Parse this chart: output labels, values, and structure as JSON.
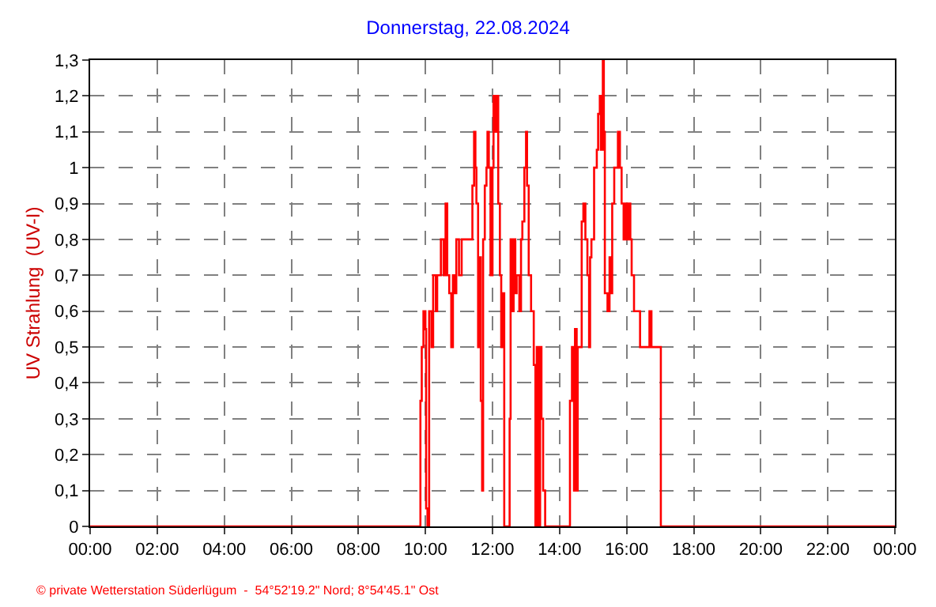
{
  "chart_data": {
    "type": "step",
    "title": "Donnerstag, 22.08.2024",
    "ylabel": "UV Strahlung  (UV-I)",
    "annotations": [
      "© private Wetterstation Süderlügum  -  54°52'19.2\" Nord; 8°54'45.1\" Ost"
    ],
    "xlim": [
      0,
      24
    ],
    "ylim": [
      0,
      1.3
    ],
    "xticks": [
      {
        "value": 0,
        "label": "00:00"
      },
      {
        "value": 2,
        "label": "02:00"
      },
      {
        "value": 4,
        "label": "04:00"
      },
      {
        "value": 6,
        "label": "06:00"
      },
      {
        "value": 8,
        "label": "08:00"
      },
      {
        "value": 10,
        "label": "10:00"
      },
      {
        "value": 12,
        "label": "12:00"
      },
      {
        "value": 14,
        "label": "14:00"
      },
      {
        "value": 16,
        "label": "16:00"
      },
      {
        "value": 18,
        "label": "18:00"
      },
      {
        "value": 20,
        "label": "20:00"
      },
      {
        "value": 22,
        "label": "22:00"
      },
      {
        "value": 24,
        "label": "00:00"
      }
    ],
    "yticks": [
      0,
      {
        "value": 0.1,
        "label": "0,1"
      },
      {
        "value": 0.2,
        "label": "0,2"
      },
      {
        "value": 0.3,
        "label": "0,3"
      },
      {
        "value": 0.4,
        "label": "0,4"
      },
      {
        "value": 0.5,
        "label": "0,5"
      },
      {
        "value": 0.6,
        "label": "0,6"
      },
      {
        "value": 0.7,
        "label": "0,7"
      },
      {
        "value": 0.8,
        "label": "0,8"
      },
      {
        "value": 0.9,
        "label": "0,9"
      },
      1,
      {
        "value": 1.1,
        "label": "1,1"
      },
      {
        "value": 1.2,
        "label": "1,2"
      },
      {
        "value": 1.3,
        "label": "1,3"
      }
    ],
    "grid": true,
    "line_style": "solid",
    "series": [
      {
        "color": "#ff0000",
        "x": [
          0,
          9.85,
          9.89,
          9.94,
          10.0,
          10.02,
          10.06,
          10.11,
          10.18,
          10.23,
          10.31,
          10.35,
          10.46,
          10.54,
          10.6,
          10.65,
          10.71,
          10.77,
          10.82,
          10.88,
          10.92,
          11.0,
          11.08,
          11.35,
          11.4,
          11.45,
          11.49,
          11.52,
          11.57,
          11.6,
          11.65,
          11.69,
          11.72,
          11.77,
          11.82,
          11.85,
          11.89,
          11.94,
          12.0,
          12.03,
          12.08,
          12.12,
          12.17,
          12.22,
          12.26,
          12.31,
          12.35,
          12.51,
          12.54,
          12.58,
          12.63,
          12.68,
          12.72,
          12.8,
          12.85,
          12.89,
          12.95,
          13.0,
          13.03,
          13.08,
          13.15,
          13.23,
          13.28,
          13.32,
          13.37,
          13.42,
          13.46,
          13.51,
          13.57,
          14.31,
          14.37,
          14.43,
          14.46,
          14.51,
          14.54,
          14.66,
          14.71,
          14.77,
          14.83,
          14.88,
          14.91,
          14.95,
          15.03,
          15.11,
          15.15,
          15.2,
          15.23,
          15.29,
          15.32,
          15.35,
          15.43,
          15.49,
          15.54,
          15.57,
          15.63,
          15.74,
          15.8,
          15.85,
          15.91,
          15.95,
          16.0,
          16.05,
          16.11,
          16.15,
          16.22,
          16.4,
          16.65,
          16.68,
          16.74,
          17.02,
          24
        ],
        "values": [
          0,
          0.35,
          0.5,
          0.6,
          0.55,
          0.05,
          0,
          0.6,
          0.5,
          0.7,
          0.6,
          0.7,
          0.8,
          0.7,
          0.9,
          0.7,
          0.65,
          0.5,
          0.7,
          0.65,
          0.8,
          0.7,
          0.8,
          0.8,
          0.95,
          1.1,
          1.0,
          0.9,
          0.5,
          0.75,
          0.35,
          0.1,
          0.8,
          0.95,
          1.0,
          1.1,
          1.0,
          0.7,
          1.0,
          1.2,
          1.1,
          1.2,
          0.9,
          0.7,
          0.5,
          0.65,
          0,
          0.3,
          0.8,
          0.6,
          0.8,
          0.65,
          0.7,
          0.6,
          0.8,
          0.85,
          1.0,
          1.1,
          0.95,
          0.7,
          0.6,
          0.45,
          0,
          0.5,
          0,
          0.5,
          0.3,
          0.1,
          0,
          0.35,
          0.5,
          0.1,
          0.55,
          0.1,
          0.5,
          0.85,
          0.9,
          0.8,
          0.7,
          0.5,
          0.75,
          0.8,
          1.0,
          1.05,
          1.15,
          1.2,
          1.05,
          1.3,
          1.1,
          0.65,
          0.6,
          0.75,
          0.65,
          0.9,
          1.0,
          1.1,
          1.0,
          0.9,
          0.8,
          0.9,
          0.8,
          0.9,
          0.8,
          0.7,
          0.6,
          0.5,
          0.5,
          0.6,
          0.5,
          0,
          0
        ]
      }
    ]
  }
}
